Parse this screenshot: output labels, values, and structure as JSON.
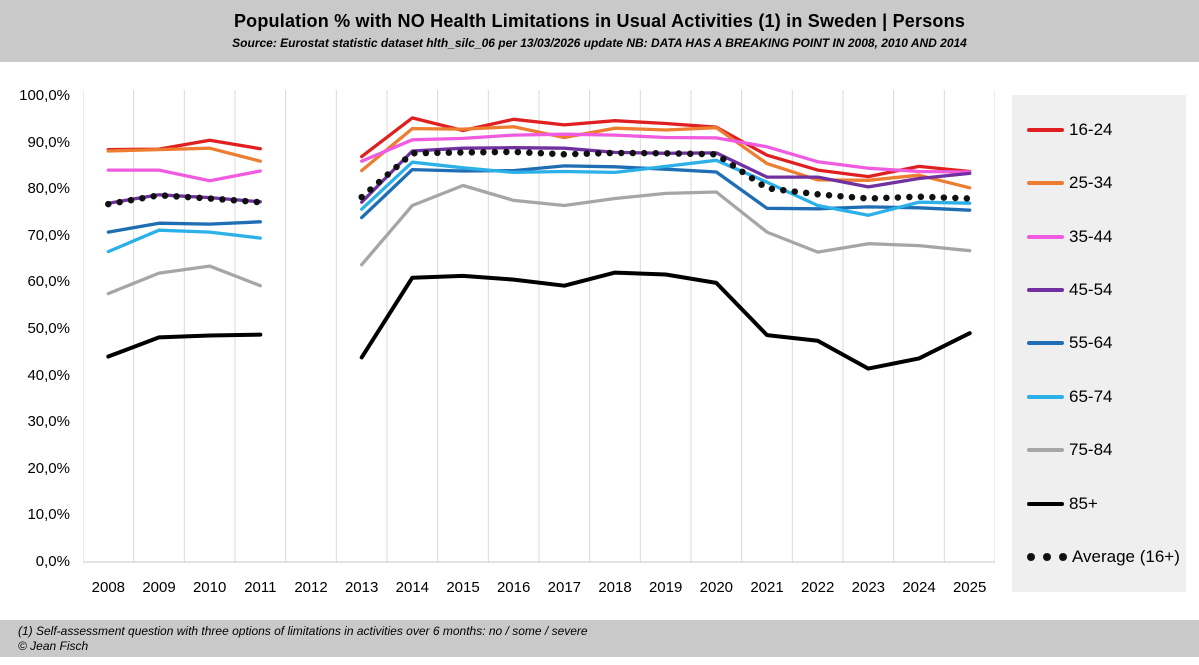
{
  "header": {
    "title": "Population % with NO Health Limitations in Usual Activities (1) in Sweden | Persons",
    "subtitle": "Source: Eurostat statistic dataset hlth_silc_06 per 13/03/2026 update    NB: DATA HAS A BREAKING POINT IN 2008, 2010 AND 2014"
  },
  "footer": {
    "note": "(1) Self-assessment question with three options of limitations in activities over 6 months: no / some / severe",
    "credit": "© Jean Fisch"
  },
  "chart_data": {
    "type": "line",
    "x": [
      2008,
      2009,
      2010,
      2011,
      2012,
      2013,
      2014,
      2015,
      2016,
      2017,
      2018,
      2019,
      2020,
      2021,
      2022,
      2023,
      2024,
      2025
    ],
    "ylim": [
      0,
      100
    ],
    "y_tick_step": 10,
    "y_tick_labels": [
      "100,0%",
      "90,0%",
      "80,0%",
      "70,0%",
      "60,0%",
      "50,0%",
      "40,0%",
      "30,0%",
      "20,0%",
      "10,0%",
      "0,0%"
    ],
    "grid": "vertical-category-boundaries",
    "gap_year": 2012,
    "legend_position": "right",
    "series": [
      {
        "name": "16-24",
        "color": "#e02020",
        "line_style": "solid",
        "values": [
          88.5,
          88.6,
          90.5,
          88.7,
          null,
          87.0,
          95.3,
          92.6,
          95.0,
          93.8,
          94.7,
          94.1,
          93.3,
          87.3,
          84.1,
          82.7,
          84.9,
          83.8
        ]
      },
      {
        "name": "25-34",
        "color": "#ed7d31",
        "line_style": "solid",
        "values": [
          88.2,
          88.5,
          88.8,
          86.0,
          null,
          84.0,
          93.0,
          92.9,
          93.4,
          91.1,
          93.1,
          92.7,
          93.2,
          85.5,
          82.0,
          81.9,
          83.0,
          80.3
        ]
      },
      {
        "name": "35-44",
        "color": "#ef5ce0",
        "line_style": "solid",
        "values": [
          84.1,
          84.1,
          81.8,
          83.9,
          null,
          86.0,
          90.6,
          90.9,
          91.6,
          91.8,
          91.6,
          91.1,
          91.0,
          89.1,
          85.9,
          84.5,
          83.8,
          83.7
        ]
      },
      {
        "name": "45-54",
        "color": "#7030a0",
        "line_style": "solid",
        "values": [
          77.0,
          78.8,
          78.2,
          77.3,
          null,
          77.2,
          88.2,
          88.8,
          88.9,
          88.8,
          87.9,
          87.7,
          87.8,
          82.6,
          82.6,
          80.5,
          82.3,
          83.4
        ]
      },
      {
        "name": "55-64",
        "color": "#1f6eb4",
        "line_style": "solid",
        "values": [
          70.8,
          72.7,
          72.5,
          73.0,
          null,
          73.9,
          84.2,
          83.9,
          84.0,
          85.0,
          84.8,
          84.3,
          83.7,
          75.9,
          75.8,
          76.2,
          76.0,
          75.5
        ]
      },
      {
        "name": "65-74",
        "color": "#2bb0e8",
        "line_style": "solid",
        "values": [
          66.6,
          71.2,
          70.8,
          69.5,
          null,
          75.7,
          85.8,
          84.6,
          83.6,
          83.8,
          83.6,
          84.9,
          86.2,
          81.5,
          76.5,
          74.4,
          77.2,
          77.0
        ]
      },
      {
        "name": "75-84",
        "color": "#a6a6a6",
        "line_style": "solid",
        "values": [
          57.6,
          62.0,
          63.5,
          59.3,
          null,
          63.8,
          76.5,
          80.8,
          77.6,
          76.5,
          78.0,
          79.1,
          79.4,
          70.8,
          66.5,
          68.3,
          67.9,
          66.8
        ]
      },
      {
        "name": "85+",
        "color": "#000000",
        "line_style": "solid",
        "values": [
          44.1,
          48.2,
          48.6,
          48.8,
          null,
          43.9,
          61.0,
          61.4,
          60.6,
          59.3,
          62.1,
          61.7,
          59.9,
          48.7,
          47.5,
          41.5,
          43.7,
          49.1
        ]
      },
      {
        "name": "Average (16+)",
        "color": "#111111",
        "line_style": "dotted",
        "values": [
          76.8,
          78.7,
          78.0,
          77.2,
          null,
          78.3,
          87.7,
          87.9,
          88.0,
          87.5,
          87.8,
          87.7,
          87.5,
          80.2,
          78.9,
          78.0,
          78.4,
          78.0
        ]
      }
    ],
    "colors": {
      "gridline": "#d9d9d9",
      "axis": "#c9c9c9",
      "banner_bg": "#c9c9c9",
      "legend_bg": "#efefef",
      "plot_bg": "#ffffff"
    }
  }
}
